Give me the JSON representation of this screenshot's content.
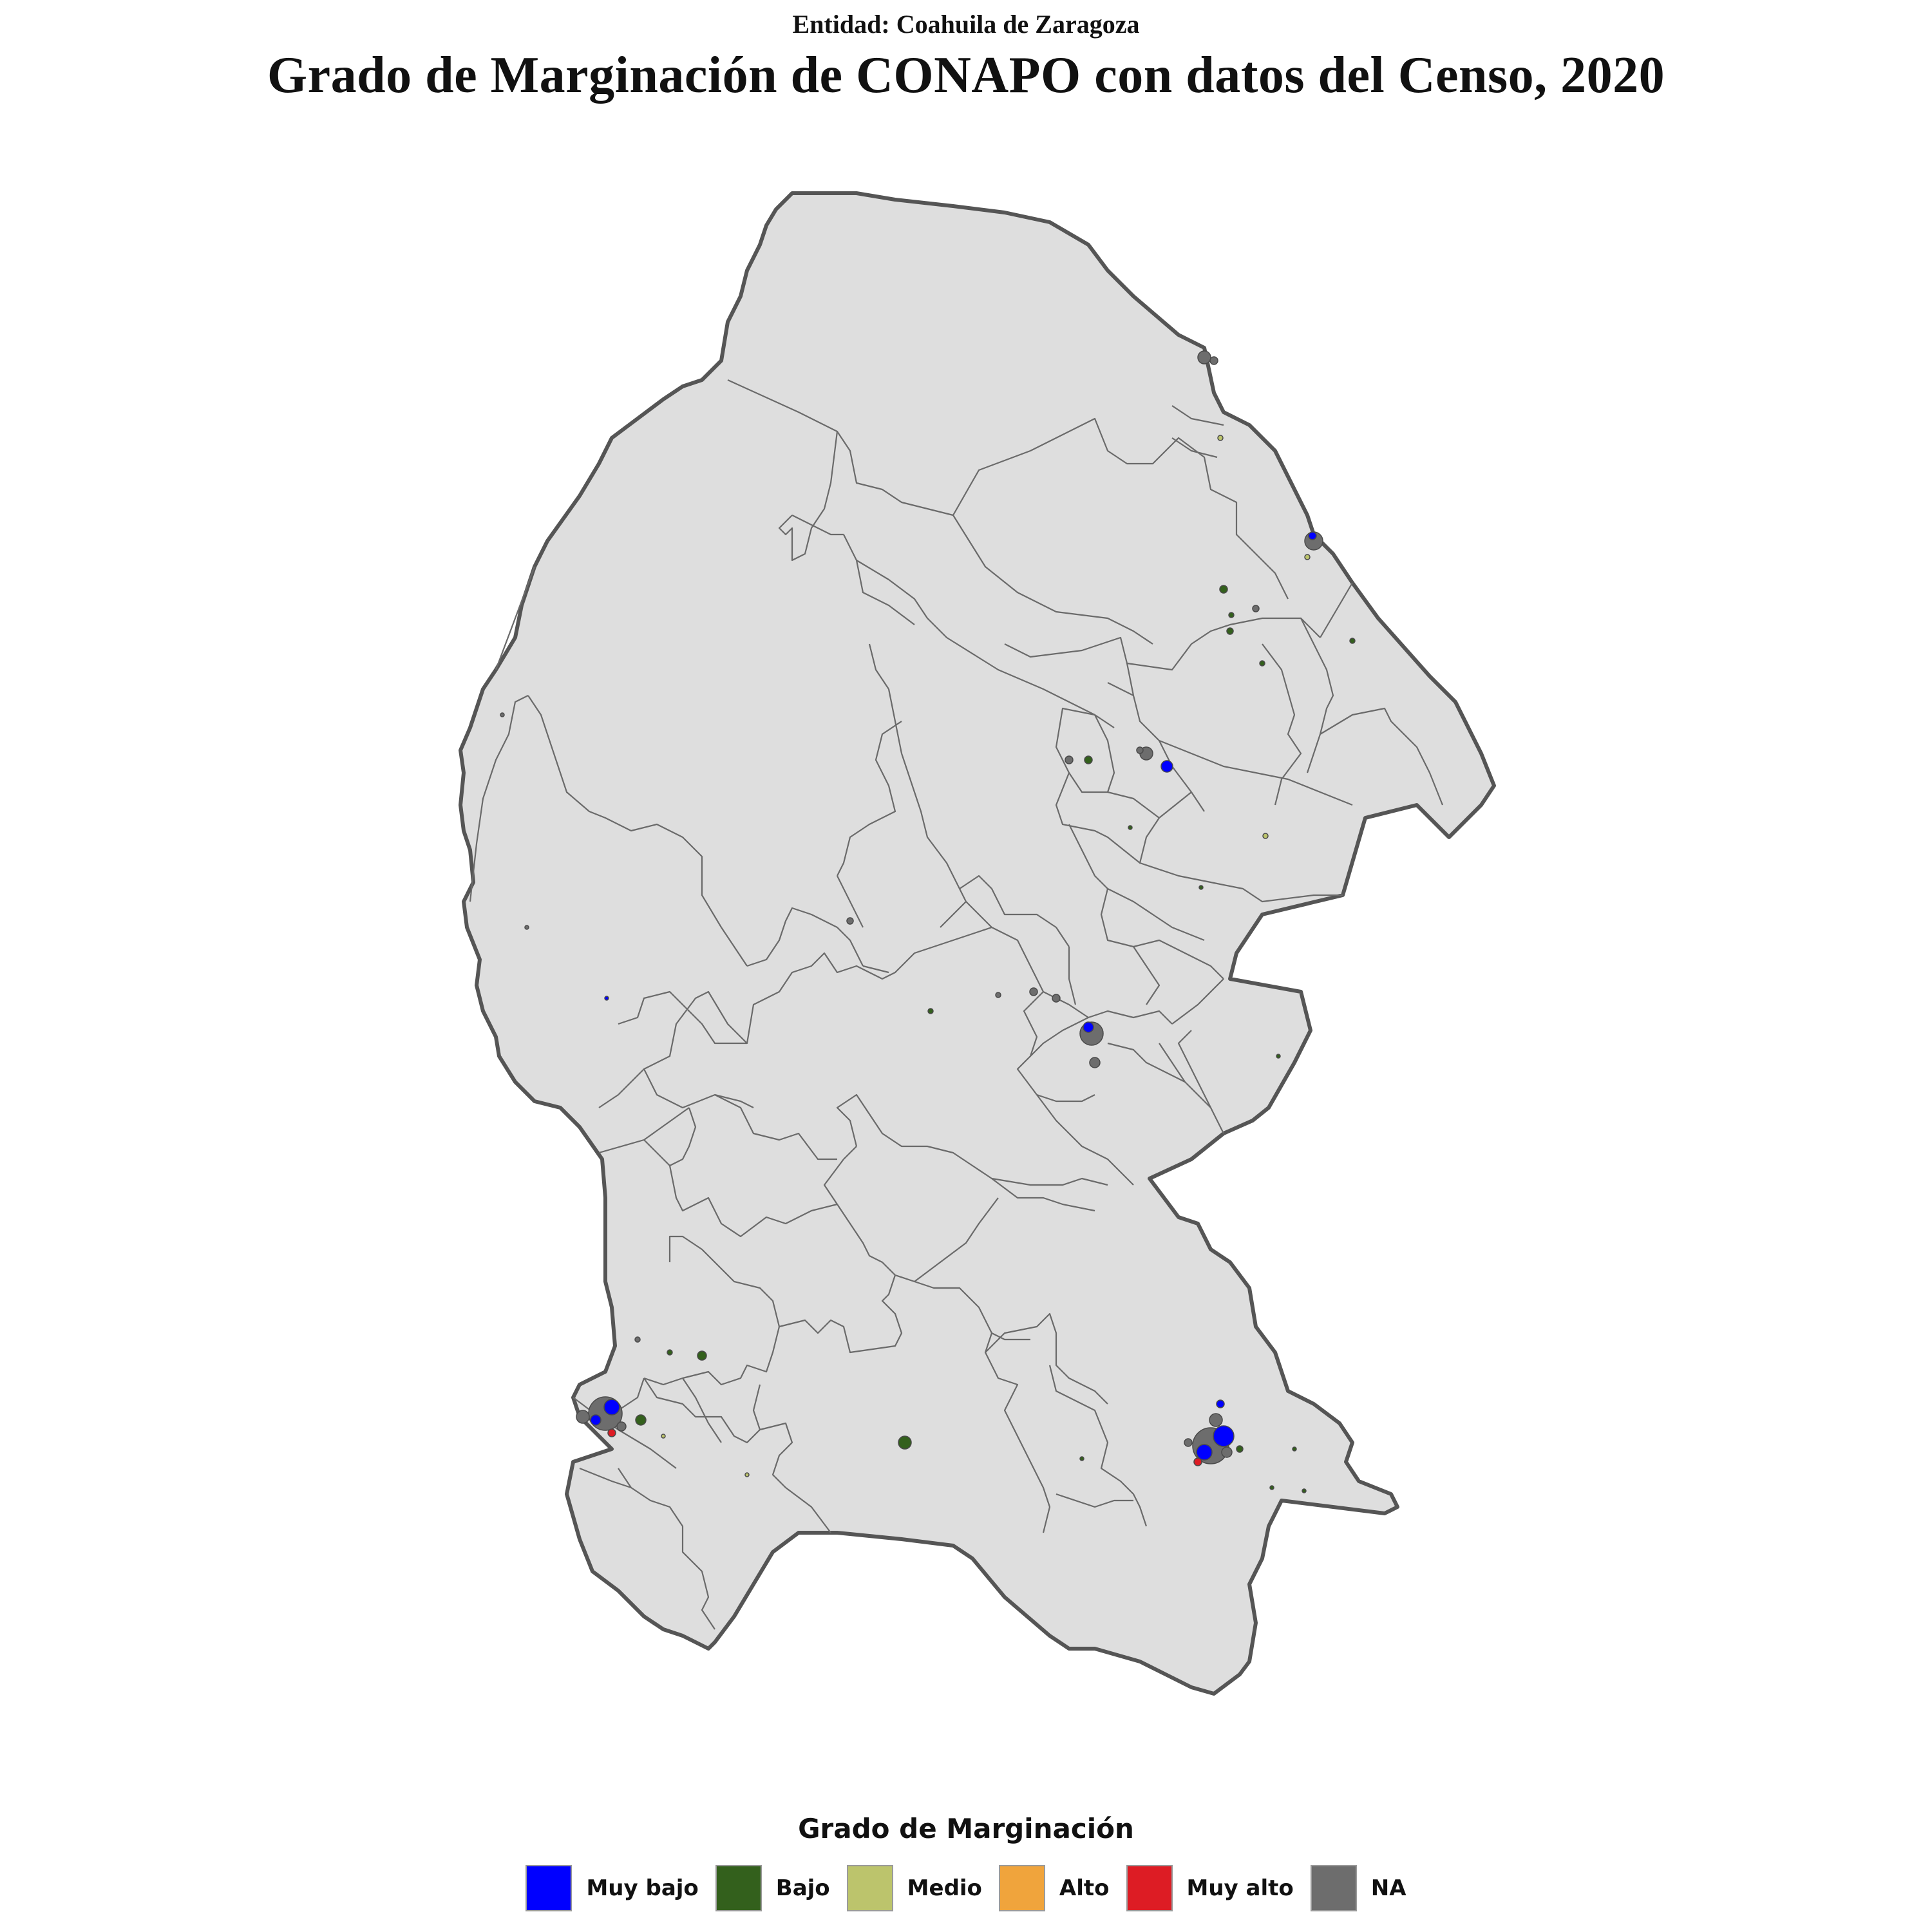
{
  "header": {
    "subtitle": "Entidad: Coahuila de Zaragoza",
    "title": "Grado de Marginación de CONAPO con datos del Censo, 2020"
  },
  "map": {
    "fill_color": "#dedede",
    "border_color": "#555555",
    "inner_border_color": "#6a6a6a"
  },
  "legend": {
    "title": "Grado de Marginación",
    "items": [
      {
        "label": "Muy bajo",
        "color": "#0000ff"
      },
      {
        "label": "Bajo",
        "color": "#33601c"
      },
      {
        "label": "Medio",
        "color": "#bcc46c"
      },
      {
        "label": "Alto",
        "color": "#f0a43c"
      },
      {
        "label": "Muy alto",
        "color": "#dd1c24"
      },
      {
        "label": "NA",
        "color": "#6d6d6d"
      }
    ]
  }
}
